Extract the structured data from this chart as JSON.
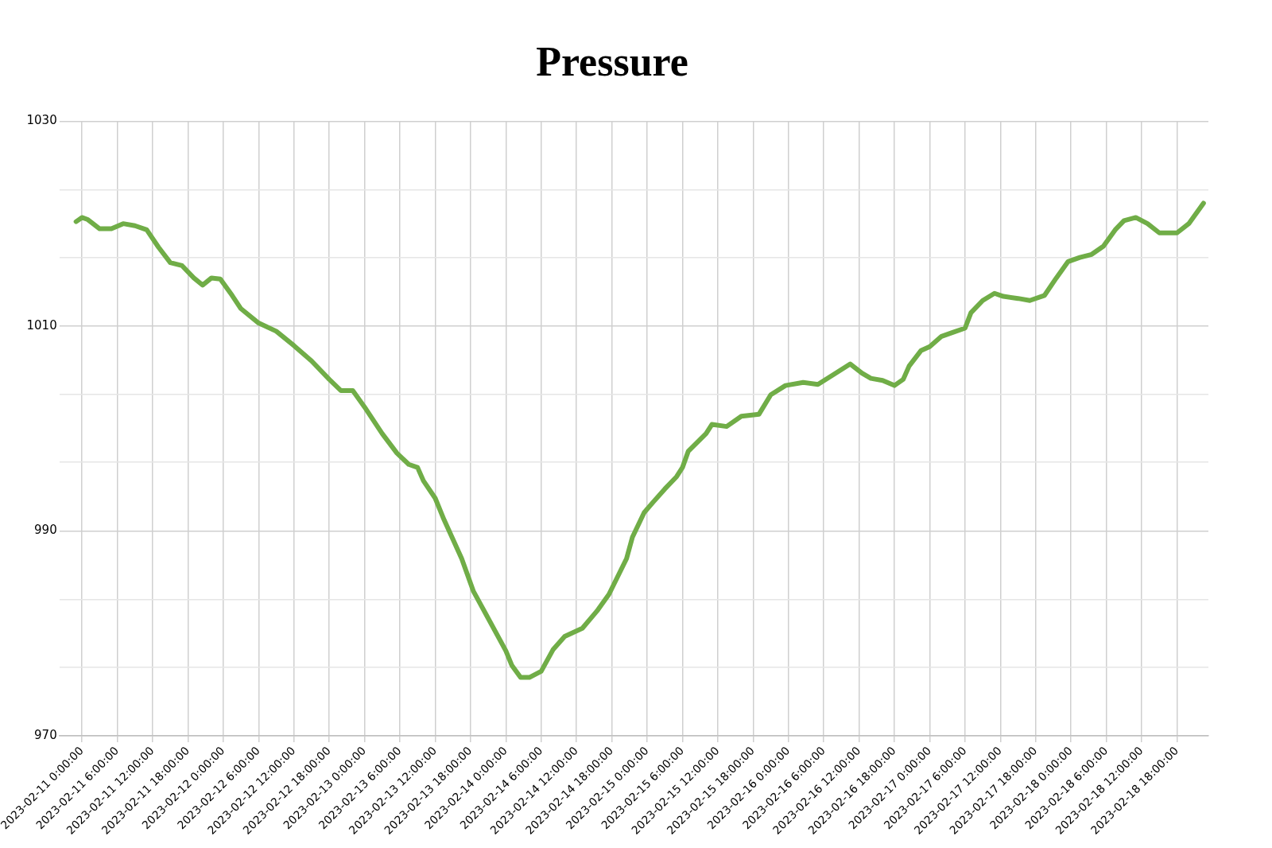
{
  "chart_data": {
    "type": "line",
    "title": "Pressure",
    "x": [
      "2023-02-10T23:00",
      "2023-02-11T00:00",
      "2023-02-11T01:00",
      "2023-02-11T03:00",
      "2023-02-11T04:00",
      "2023-02-11T05:00",
      "2023-02-11T07:00",
      "2023-02-11T09:00",
      "2023-02-11T11:00",
      "2023-02-11T13:00",
      "2023-02-11T15:00",
      "2023-02-11T17:00",
      "2023-02-11T19:00",
      "2023-02-11T20:30",
      "2023-02-11T22:00",
      "2023-02-11T23:30",
      "2023-02-12T01:30",
      "2023-02-12T03:00",
      "2023-02-12T06:00",
      "2023-02-12T09:00",
      "2023-02-12T12:00",
      "2023-02-12T15:00",
      "2023-02-12T18:00",
      "2023-02-12T20:00",
      "2023-02-12T22:00",
      "2023-02-13T00:00",
      "2023-02-13T03:00",
      "2023-02-13T05:30",
      "2023-02-13T07:30",
      "2023-02-13T09:00",
      "2023-02-13T10:00",
      "2023-02-13T12:00",
      "2023-02-13T13:30",
      "2023-02-13T16:30",
      "2023-02-13T18:30",
      "2023-02-13T20:30",
      "2023-02-14T00:00",
      "2023-02-14T01:00",
      "2023-02-14T02:30",
      "2023-02-14T04:00",
      "2023-02-14T06:00",
      "2023-02-14T08:00",
      "2023-02-14T10:00",
      "2023-02-14T13:00",
      "2023-02-14T15:30",
      "2023-02-14T17:30",
      "2023-02-14T20:30",
      "2023-02-14T21:30",
      "2023-02-14T23:30",
      "2023-02-15T01:00",
      "2023-02-15T03:00",
      "2023-02-15T05:00",
      "2023-02-15T06:00",
      "2023-02-15T07:00",
      "2023-02-15T10:00",
      "2023-02-15T11:00",
      "2023-02-15T13:30",
      "2023-02-15T16:00",
      "2023-02-15T19:00",
      "2023-02-15T21:00",
      "2023-02-15T23:30",
      "2023-02-16T02:30",
      "2023-02-16T05:00",
      "2023-02-16T08:00",
      "2023-02-16T10:30",
      "2023-02-16T12:30",
      "2023-02-16T14:00",
      "2023-02-16T16:00",
      "2023-02-16T18:00",
      "2023-02-16T19:30",
      "2023-02-16T20:30",
      "2023-02-16T22:30",
      "2023-02-17T00:00",
      "2023-02-17T02:00",
      "2023-02-17T04:00",
      "2023-02-17T06:00",
      "2023-02-17T07:00",
      "2023-02-17T09:00",
      "2023-02-17T11:00",
      "2023-02-17T12:30",
      "2023-02-17T15:00",
      "2023-02-17T17:00",
      "2023-02-17T19:30",
      "2023-02-17T21:30",
      "2023-02-17T23:30",
      "2023-02-18T01:30",
      "2023-02-18T03:30",
      "2023-02-18T05:30",
      "2023-02-18T07:30",
      "2023-02-18T09:00",
      "2023-02-18T11:00",
      "2023-02-18T13:00",
      "2023-02-18T15:00",
      "2023-02-18T18:00",
      "2023-02-18T20:00",
      "2023-02-18T22:30"
    ],
    "series": [
      {
        "color": "#70ad47",
        "values": [
          1020.2,
          1020.6,
          1020.4,
          1019.5,
          1019.5,
          1019.5,
          1020.0,
          1019.8,
          1019.4,
          1017.7,
          1016.2,
          1015.9,
          1014.7,
          1014.0,
          1014.7,
          1014.6,
          1013.0,
          1011.7,
          1010.3,
          1009.5,
          1008.1,
          1006.6,
          1004.8,
          1003.7,
          1003.7,
          1002.1,
          999.5,
          997.6,
          996.5,
          996.2,
          994.9,
          993.2,
          991.1,
          987.3,
          984.1,
          982.0,
          978.3,
          976.9,
          975.7,
          975.7,
          976.3,
          978.4,
          979.7,
          980.5,
          982.2,
          983.8,
          987.3,
          989.4,
          991.8,
          992.8,
          994.1,
          995.3,
          996.2,
          997.8,
          999.5,
          1000.4,
          1000.2,
          1001.2,
          1001.4,
          1003.3,
          1004.2,
          1004.5,
          1004.3,
          1005.4,
          1006.3,
          1005.4,
          1004.9,
          1004.7,
          1004.2,
          1004.8,
          1006.1,
          1007.6,
          1008.0,
          1009.0,
          1009.4,
          1009.8,
          1011.3,
          1012.5,
          1013.2,
          1012.9,
          1012.7,
          1012.5,
          1013.0,
          1014.7,
          1016.3,
          1016.7,
          1017.0,
          1017.8,
          1019.4,
          1020.3,
          1020.6,
          1020.0,
          1019.1,
          1019.1,
          1020.0,
          1022.0
        ]
      }
    ],
    "xlim": [
      "2023-02-10T20:10",
      "2023-02-18T23:20"
    ],
    "xticks": [
      {
        "value": "2023-02-11T00:00",
        "label": "2023-02-11 0:00:00"
      },
      {
        "value": "2023-02-11T06:00",
        "label": "2023-02-11 6:00:00"
      },
      {
        "value": "2023-02-11T12:00",
        "label": "2023-02-11 12:00:00"
      },
      {
        "value": "2023-02-11T18:00",
        "label": "2023-02-11 18:00:00"
      },
      {
        "value": "2023-02-12T00:00",
        "label": "2023-02-12 0:00:00"
      },
      {
        "value": "2023-02-12T06:00",
        "label": "2023-02-12 6:00:00"
      },
      {
        "value": "2023-02-12T12:00",
        "label": "2023-02-12 12:00:00"
      },
      {
        "value": "2023-02-12T18:00",
        "label": "2023-02-12 18:00:00"
      },
      {
        "value": "2023-02-13T00:00",
        "label": "2023-02-13 0:00:00"
      },
      {
        "value": "2023-02-13T06:00",
        "label": "2023-02-13 6:00:00"
      },
      {
        "value": "2023-02-13T12:00",
        "label": "2023-02-13 12:00:00"
      },
      {
        "value": "2023-02-13T18:00",
        "label": "2023-02-13 18:00:00"
      },
      {
        "value": "2023-02-14T00:00",
        "label": "2023-02-14 0:00:00"
      },
      {
        "value": "2023-02-14T06:00",
        "label": "2023-02-14 6:00:00"
      },
      {
        "value": "2023-02-14T12:00",
        "label": "2023-02-14 12:00:00"
      },
      {
        "value": "2023-02-14T18:00",
        "label": "2023-02-14 18:00:00"
      },
      {
        "value": "2023-02-15T00:00",
        "label": "2023-02-15 0:00:00"
      },
      {
        "value": "2023-02-15T06:00",
        "label": "2023-02-15 6:00:00"
      },
      {
        "value": "2023-02-15T12:00",
        "label": "2023-02-15 12:00:00"
      },
      {
        "value": "2023-02-15T18:00",
        "label": "2023-02-15 18:00:00"
      },
      {
        "value": "2023-02-16T00:00",
        "label": "2023-02-16 0:00:00"
      },
      {
        "value": "2023-02-16T06:00",
        "label": "2023-02-16 6:00:00"
      },
      {
        "value": "2023-02-16T12:00",
        "label": "2023-02-16 12:00:00"
      },
      {
        "value": "2023-02-16T18:00",
        "label": "2023-02-16 18:00:00"
      },
      {
        "value": "2023-02-17T00:00",
        "label": "2023-02-17 0:00:00"
      },
      {
        "value": "2023-02-17T06:00",
        "label": "2023-02-17 6:00:00"
      },
      {
        "value": "2023-02-17T12:00",
        "label": "2023-02-17 12:00:00"
      },
      {
        "value": "2023-02-17T18:00",
        "label": "2023-02-17 18:00:00"
      },
      {
        "value": "2023-02-18T00:00",
        "label": "2023-02-18 0:00:00"
      },
      {
        "value": "2023-02-18T06:00",
        "label": "2023-02-18 6:00:00"
      },
      {
        "value": "2023-02-18T12:00",
        "label": "2023-02-18 12:00:00"
      },
      {
        "value": "2023-02-18T18:00",
        "label": "2023-02-18 18:00:00"
      }
    ],
    "ylim": [
      970,
      1030
    ],
    "yticks": [
      970,
      {
        "value": 976.7,
        "label": null
      },
      {
        "value": 983.3,
        "label": null
      },
      990,
      {
        "value": 996.7,
        "label": null
      },
      {
        "value": 1003.3,
        "label": null
      },
      1010,
      {
        "value": 1016.7,
        "label": null
      },
      {
        "value": 1023.3,
        "label": null
      },
      1030
    ],
    "grid": true,
    "legend": false,
    "marker": "none",
    "line_style": "solid"
  }
}
